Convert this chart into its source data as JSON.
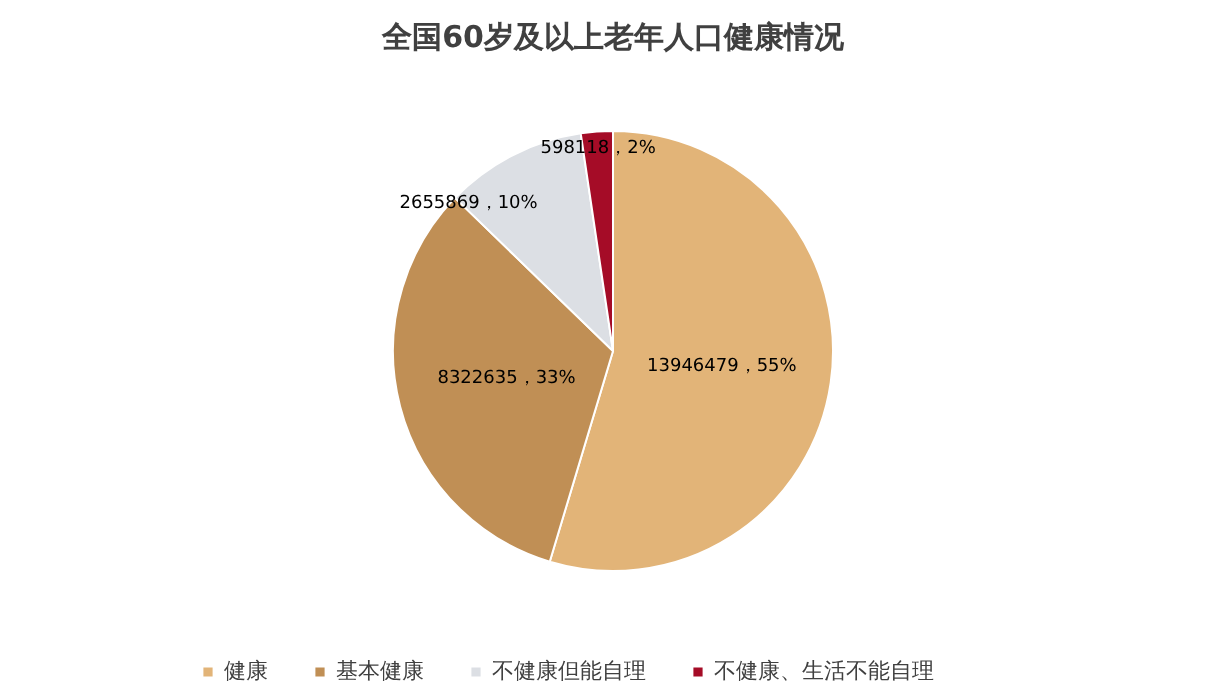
{
  "chart_data": {
    "type": "pie",
    "title": "全国60岁及以上老年人口健康情况",
    "categories": [
      "健康",
      "基本健康",
      "不健康但能自理",
      "不健康、生活不能自理"
    ],
    "values": [
      13946479,
      8322635,
      2655869,
      598118
    ],
    "colors": [
      "#e2b478",
      "#c08f55",
      "#dcdfe4",
      "#a50c27"
    ],
    "value_labels": [
      "13946479，55%",
      "8322635，33%",
      "2655869，10%",
      "598118，2%"
    ],
    "legend": "bottom"
  }
}
